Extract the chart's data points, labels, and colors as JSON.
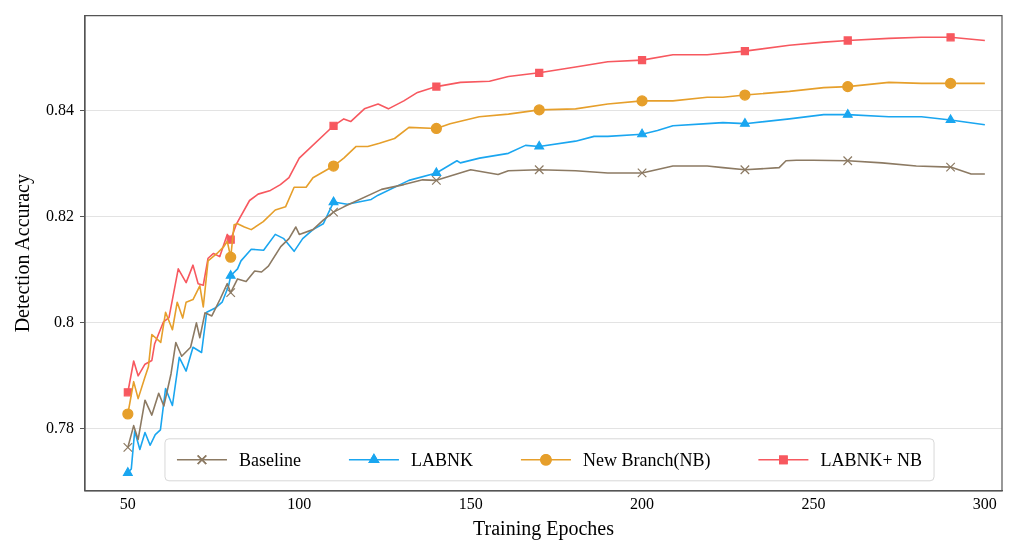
{
  "chart_data": {
    "type": "line",
    "xlabel": "Training Epoches",
    "ylabel": "Detection Accuracy",
    "xlim": [
      37.5,
      305
    ],
    "ylim": [
      0.7683,
      0.858
    ],
    "xticks": [
      50,
      100,
      150,
      200,
      250,
      300
    ],
    "yticks": [
      0.78,
      0.8,
      0.82,
      0.84
    ],
    "grid": "y",
    "legend": "bottom",
    "line_style": "solid",
    "series": [
      {
        "name": "Baseline",
        "color": "#8c7a63",
        "x": [
          50,
          51.7,
          53,
          55,
          57,
          59,
          60.5,
          62.6,
          64,
          65.7,
          68.3,
          70,
          71,
          72.5,
          74.5,
          77,
          79,
          80,
          82,
          84.5,
          87,
          89,
          91,
          94.6,
          97,
          99,
          100,
          104,
          107,
          110,
          113,
          124,
          130.5,
          136,
          140,
          150,
          158,
          161,
          170,
          180.6,
          190,
          200,
          209,
          219,
          223.6,
          230,
          240,
          242,
          245,
          250,
          260,
          270,
          280,
          290,
          296,
          300
        ],
        "values": [
          0.7765,
          0.7806,
          0.778,
          0.7854,
          0.7826,
          0.7867,
          0.7843,
          0.7904,
          0.7963,
          0.7937,
          0.7954,
          0.8,
          0.7972,
          0.8019,
          0.8013,
          0.8046,
          0.8074,
          0.8057,
          0.8083,
          0.8078,
          0.8098,
          0.8096,
          0.8107,
          0.8144,
          0.8159,
          0.8181,
          0.8167,
          0.8176,
          0.8194,
          0.8209,
          0.8219,
          0.8252,
          0.8261,
          0.827,
          0.8269,
          0.8289,
          0.828,
          0.8287,
          0.8289,
          0.8287,
          0.8283,
          0.8283,
          0.8296,
          0.8296,
          0.8293,
          0.8289,
          0.8293,
          0.8306,
          0.8307,
          0.8307,
          0.8306,
          0.8302,
          0.8296,
          0.8294,
          0.8281,
          0.8281
        ]
      },
      {
        "name": "LABNK",
        "color": "#1aa6f0",
        "x": [
          50,
          51,
          52,
          53.5,
          55,
          56.5,
          58,
          59.5,
          61,
          63,
          65,
          67,
          69,
          71.5,
          73,
          75.5,
          77.5,
          79.4,
          80,
          82,
          83,
          86,
          89.6,
          93,
          95.5,
          98.5,
          101,
          104,
          107,
          110,
          114,
          121,
          123,
          132,
          140,
          146,
          147,
          152.6,
          161,
          166,
          170,
          180.6,
          186,
          190,
          200,
          204.5,
          209,
          219,
          223.6,
          230,
          243,
          253,
          260,
          272,
          281.5,
          290,
          300
        ],
        "values": [
          0.7717,
          0.7724,
          0.7796,
          0.7761,
          0.7793,
          0.7769,
          0.7789,
          0.7798,
          0.7876,
          0.7844,
          0.7935,
          0.7909,
          0.7954,
          0.7944,
          0.802,
          0.8028,
          0.8039,
          0.807,
          0.8089,
          0.8102,
          0.8117,
          0.8139,
          0.8137,
          0.8167,
          0.8159,
          0.8135,
          0.8159,
          0.8176,
          0.8187,
          0.8228,
          0.8224,
          0.8233,
          0.8241,
          0.8269,
          0.8283,
          0.8306,
          0.8302,
          0.8311,
          0.832,
          0.8335,
          0.8333,
          0.8343,
          0.8352,
          0.8352,
          0.8356,
          0.8363,
          0.8372,
          0.8376,
          0.8378,
          0.8376,
          0.8385,
          0.8393,
          0.8393,
          0.8389,
          0.8389,
          0.8383,
          0.8374
        ]
      },
      {
        "name": "New Branch(NB)",
        "color": "#e69f2b",
        "x": [
          50,
          51.7,
          53,
          55,
          56,
          57,
          59.6,
          61,
          63,
          64.4,
          66,
          67,
          69,
          71,
          72,
          73.4,
          76,
          78,
          79,
          80,
          81,
          82,
          84,
          86,
          89.5,
          93,
          96,
          98.5,
          102,
          104,
          110,
          113,
          116.6,
          120,
          123.4,
          127.8,
          132,
          140,
          144,
          152.5,
          161,
          170,
          180.6,
          190,
          200,
          209,
          219,
          223.6,
          230,
          243,
          253,
          260,
          272,
          281.5,
          290,
          300
        ],
        "values": [
          0.7828,
          0.7889,
          0.7857,
          0.7898,
          0.7917,
          0.7978,
          0.7963,
          0.802,
          0.7987,
          0.8039,
          0.8009,
          0.8039,
          0.8044,
          0.807,
          0.803,
          0.8117,
          0.8131,
          0.8144,
          0.8154,
          0.8124,
          0.8185,
          0.8187,
          0.8181,
          0.8176,
          0.8191,
          0.8213,
          0.8219,
          0.8256,
          0.8256,
          0.8274,
          0.8296,
          0.8311,
          0.8333,
          0.8333,
          0.8339,
          0.8348,
          0.8369,
          0.8367,
          0.8376,
          0.8389,
          0.8394,
          0.8402,
          0.8404,
          0.8413,
          0.8419,
          0.8419,
          0.8426,
          0.8426,
          0.843,
          0.8437,
          0.8444,
          0.8446,
          0.8454,
          0.8452,
          0.8452,
          0.8452
        ]
      },
      {
        "name": "LABNK+ NB",
        "color": "#f7585f",
        "x": [
          50,
          51.7,
          53,
          55,
          57,
          57.8,
          60.4,
          62,
          64.7,
          67,
          69,
          70.5,
          72,
          73.4,
          75,
          76.8,
          79,
          80,
          81.7,
          85.5,
          88,
          91.6,
          94.5,
          97,
          100,
          110,
          113,
          115,
          119,
          123,
          126,
          130.5,
          134.5,
          140,
          147,
          155.5,
          161,
          170,
          180.6,
          190,
          200,
          209,
          219,
          230,
          243,
          253,
          260,
          272,
          281.5,
          290,
          300
        ],
        "values": [
          0.7869,
          0.7928,
          0.79,
          0.7922,
          0.7929,
          0.796,
          0.8002,
          0.801,
          0.8102,
          0.8076,
          0.8109,
          0.8074,
          0.8071,
          0.8122,
          0.8131,
          0.8125,
          0.8167,
          0.8157,
          0.8187,
          0.8231,
          0.8243,
          0.825,
          0.8261,
          0.8274,
          0.8311,
          0.8372,
          0.8385,
          0.838,
          0.8404,
          0.8413,
          0.8404,
          0.8419,
          0.8435,
          0.8446,
          0.8454,
          0.8456,
          0.8465,
          0.8472,
          0.8483,
          0.8493,
          0.8496,
          0.8506,
          0.8506,
          0.8513,
          0.8524,
          0.853,
          0.8533,
          0.8537,
          0.8539,
          0.8539,
          0.8533
        ]
      },
      {
        "type": "scatter",
        "color": "#8c7a63",
        "marker": "cross",
        "x": [
          50,
          80,
          110,
          140,
          170,
          200,
          230,
          260,
          290
        ],
        "values": [
          0.7765,
          0.8057,
          0.8209,
          0.8269,
          0.8289,
          0.8283,
          0.8289,
          0.8306,
          0.8294
        ]
      },
      {
        "type": "scatter",
        "color": "#1aa6f0",
        "marker": "triangle",
        "x": [
          50,
          80,
          110,
          140,
          170,
          200,
          230,
          260,
          290
        ],
        "values": [
          0.7717,
          0.8089,
          0.8228,
          0.8283,
          0.8333,
          0.8356,
          0.8376,
          0.8393,
          0.8383
        ]
      },
      {
        "type": "scatter",
        "color": "#e69f2b",
        "marker": "circle",
        "x": [
          50,
          80,
          110,
          140,
          170,
          200,
          230,
          260,
          290
        ],
        "values": [
          0.7828,
          0.8124,
          0.8296,
          0.8367,
          0.8402,
          0.8419,
          0.843,
          0.8446,
          0.8452
        ]
      },
      {
        "type": "scatter",
        "color": "#f7585f",
        "marker": "square",
        "x": [
          50,
          80,
          110,
          140,
          170,
          200,
          230,
          260,
          290
        ],
        "values": [
          0.7869,
          0.8157,
          0.8372,
          0.8446,
          0.8472,
          0.8496,
          0.8513,
          0.8533,
          0.8539
        ]
      }
    ]
  }
}
